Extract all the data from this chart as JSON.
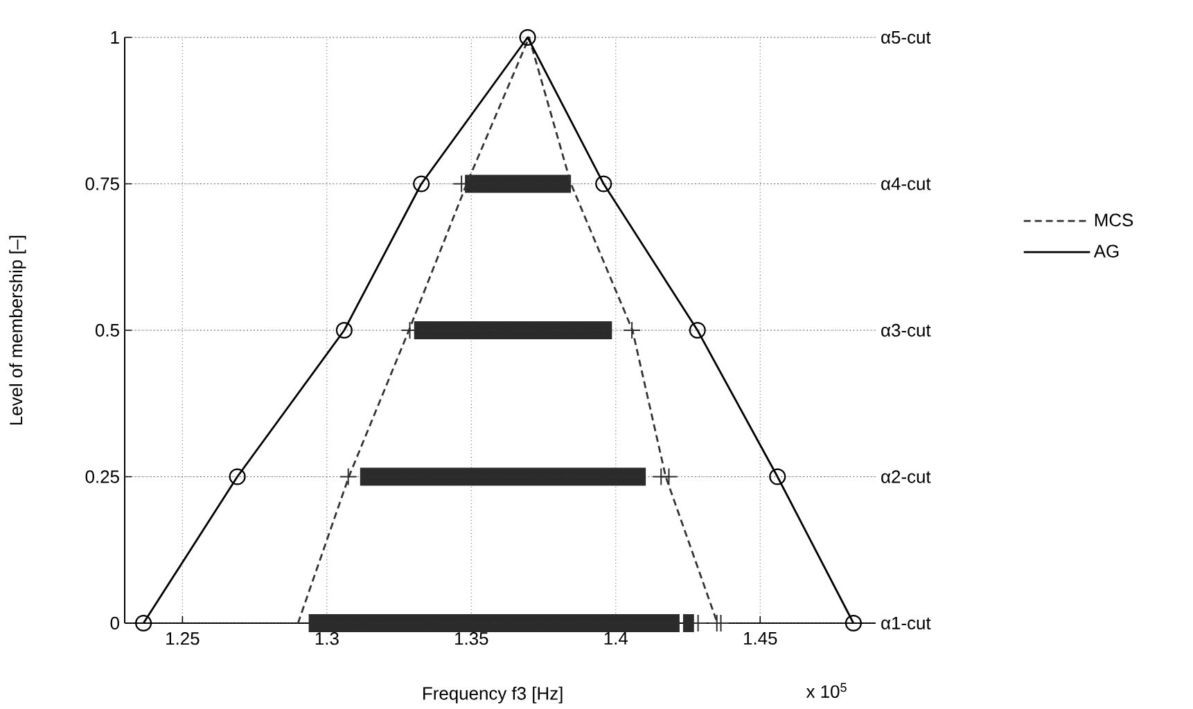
{
  "chart_data": {
    "type": "line",
    "xlabel": "Frequency f3 [Hz]",
    "ylabel": "Level of membership [–]",
    "xlim": [
      1.23,
      1.49
    ],
    "ylim": [
      0,
      1
    ],
    "xticks": [
      1.25,
      1.3,
      1.35,
      1.4,
      1.45
    ],
    "yticks": [
      0,
      0.25,
      0.5,
      0.75,
      1
    ],
    "ref_lines": [
      {
        "axis": "y",
        "value": 0,
        "label": "α1-cut"
      },
      {
        "axis": "y",
        "value": 0.25,
        "label": "α2-cut"
      },
      {
        "axis": "y",
        "value": 0.5,
        "label": "α3-cut"
      },
      {
        "axis": "y",
        "value": 0.75,
        "label": "α4-cut"
      },
      {
        "axis": "y",
        "value": 1,
        "label": "α5-cut"
      }
    ],
    "grid": true,
    "legend": "right",
    "annotations": [
      "x 10$^{5}$"
    ],
    "series": [
      {
        "color": "#2b2b2b",
        "x": [
          1.2937,
          1.4221
        ],
        "values": [
          0,
          0
        ]
      },
      {
        "color": "#2b2b2b",
        "x": [
          1.4233,
          1.4271
        ],
        "values": [
          0,
          0
        ]
      },
      {
        "color": "#2b2b2b",
        "x": [
          1.3115,
          1.4104
        ],
        "values": [
          0.25,
          0.25
        ]
      },
      {
        "color": "#2b2b2b",
        "x": [
          1.3302,
          1.3987
        ],
        "values": [
          0.5,
          0.5
        ]
      },
      {
        "color": "#2b2b2b",
        "x": [
          1.3478,
          1.3845
        ],
        "values": [
          0.75,
          0.75
        ]
      },
      {
        "type": "scatter",
        "color": "#2b2b2b",
        "marker": "cross",
        "x": [
          1.4285,
          1.435,
          1.4364,
          1.3074,
          1.4157,
          1.4184,
          1.3287,
          1.4056,
          1.3466
        ],
        "values": [
          0,
          0,
          0,
          0.25,
          0.25,
          0.25,
          0.5,
          0.5,
          0.75
        ]
      },
      {
        "name": "MCS",
        "color": "#333333",
        "line_style": "dashed",
        "marker": "none",
        "x": [
          1.29,
          1.3076,
          1.3284,
          1.3484,
          1.37,
          1.3845,
          1.4058,
          1.4173,
          1.4352
        ],
        "values": [
          0,
          0.25,
          0.5,
          0.75,
          1,
          0.75,
          0.5,
          0.25,
          0
        ]
      },
      {
        "name": "AG",
        "color": "#000000",
        "line_style": "solid",
        "marker": "circle",
        "x": [
          1.2365,
          1.269,
          1.306,
          1.3327,
          1.3695,
          1.3958,
          1.4283,
          1.456,
          1.4823
        ],
        "values": [
          0,
          0.25,
          0.5,
          0.75,
          1,
          0.75,
          0.5,
          0.25,
          0
        ]
      }
    ]
  }
}
